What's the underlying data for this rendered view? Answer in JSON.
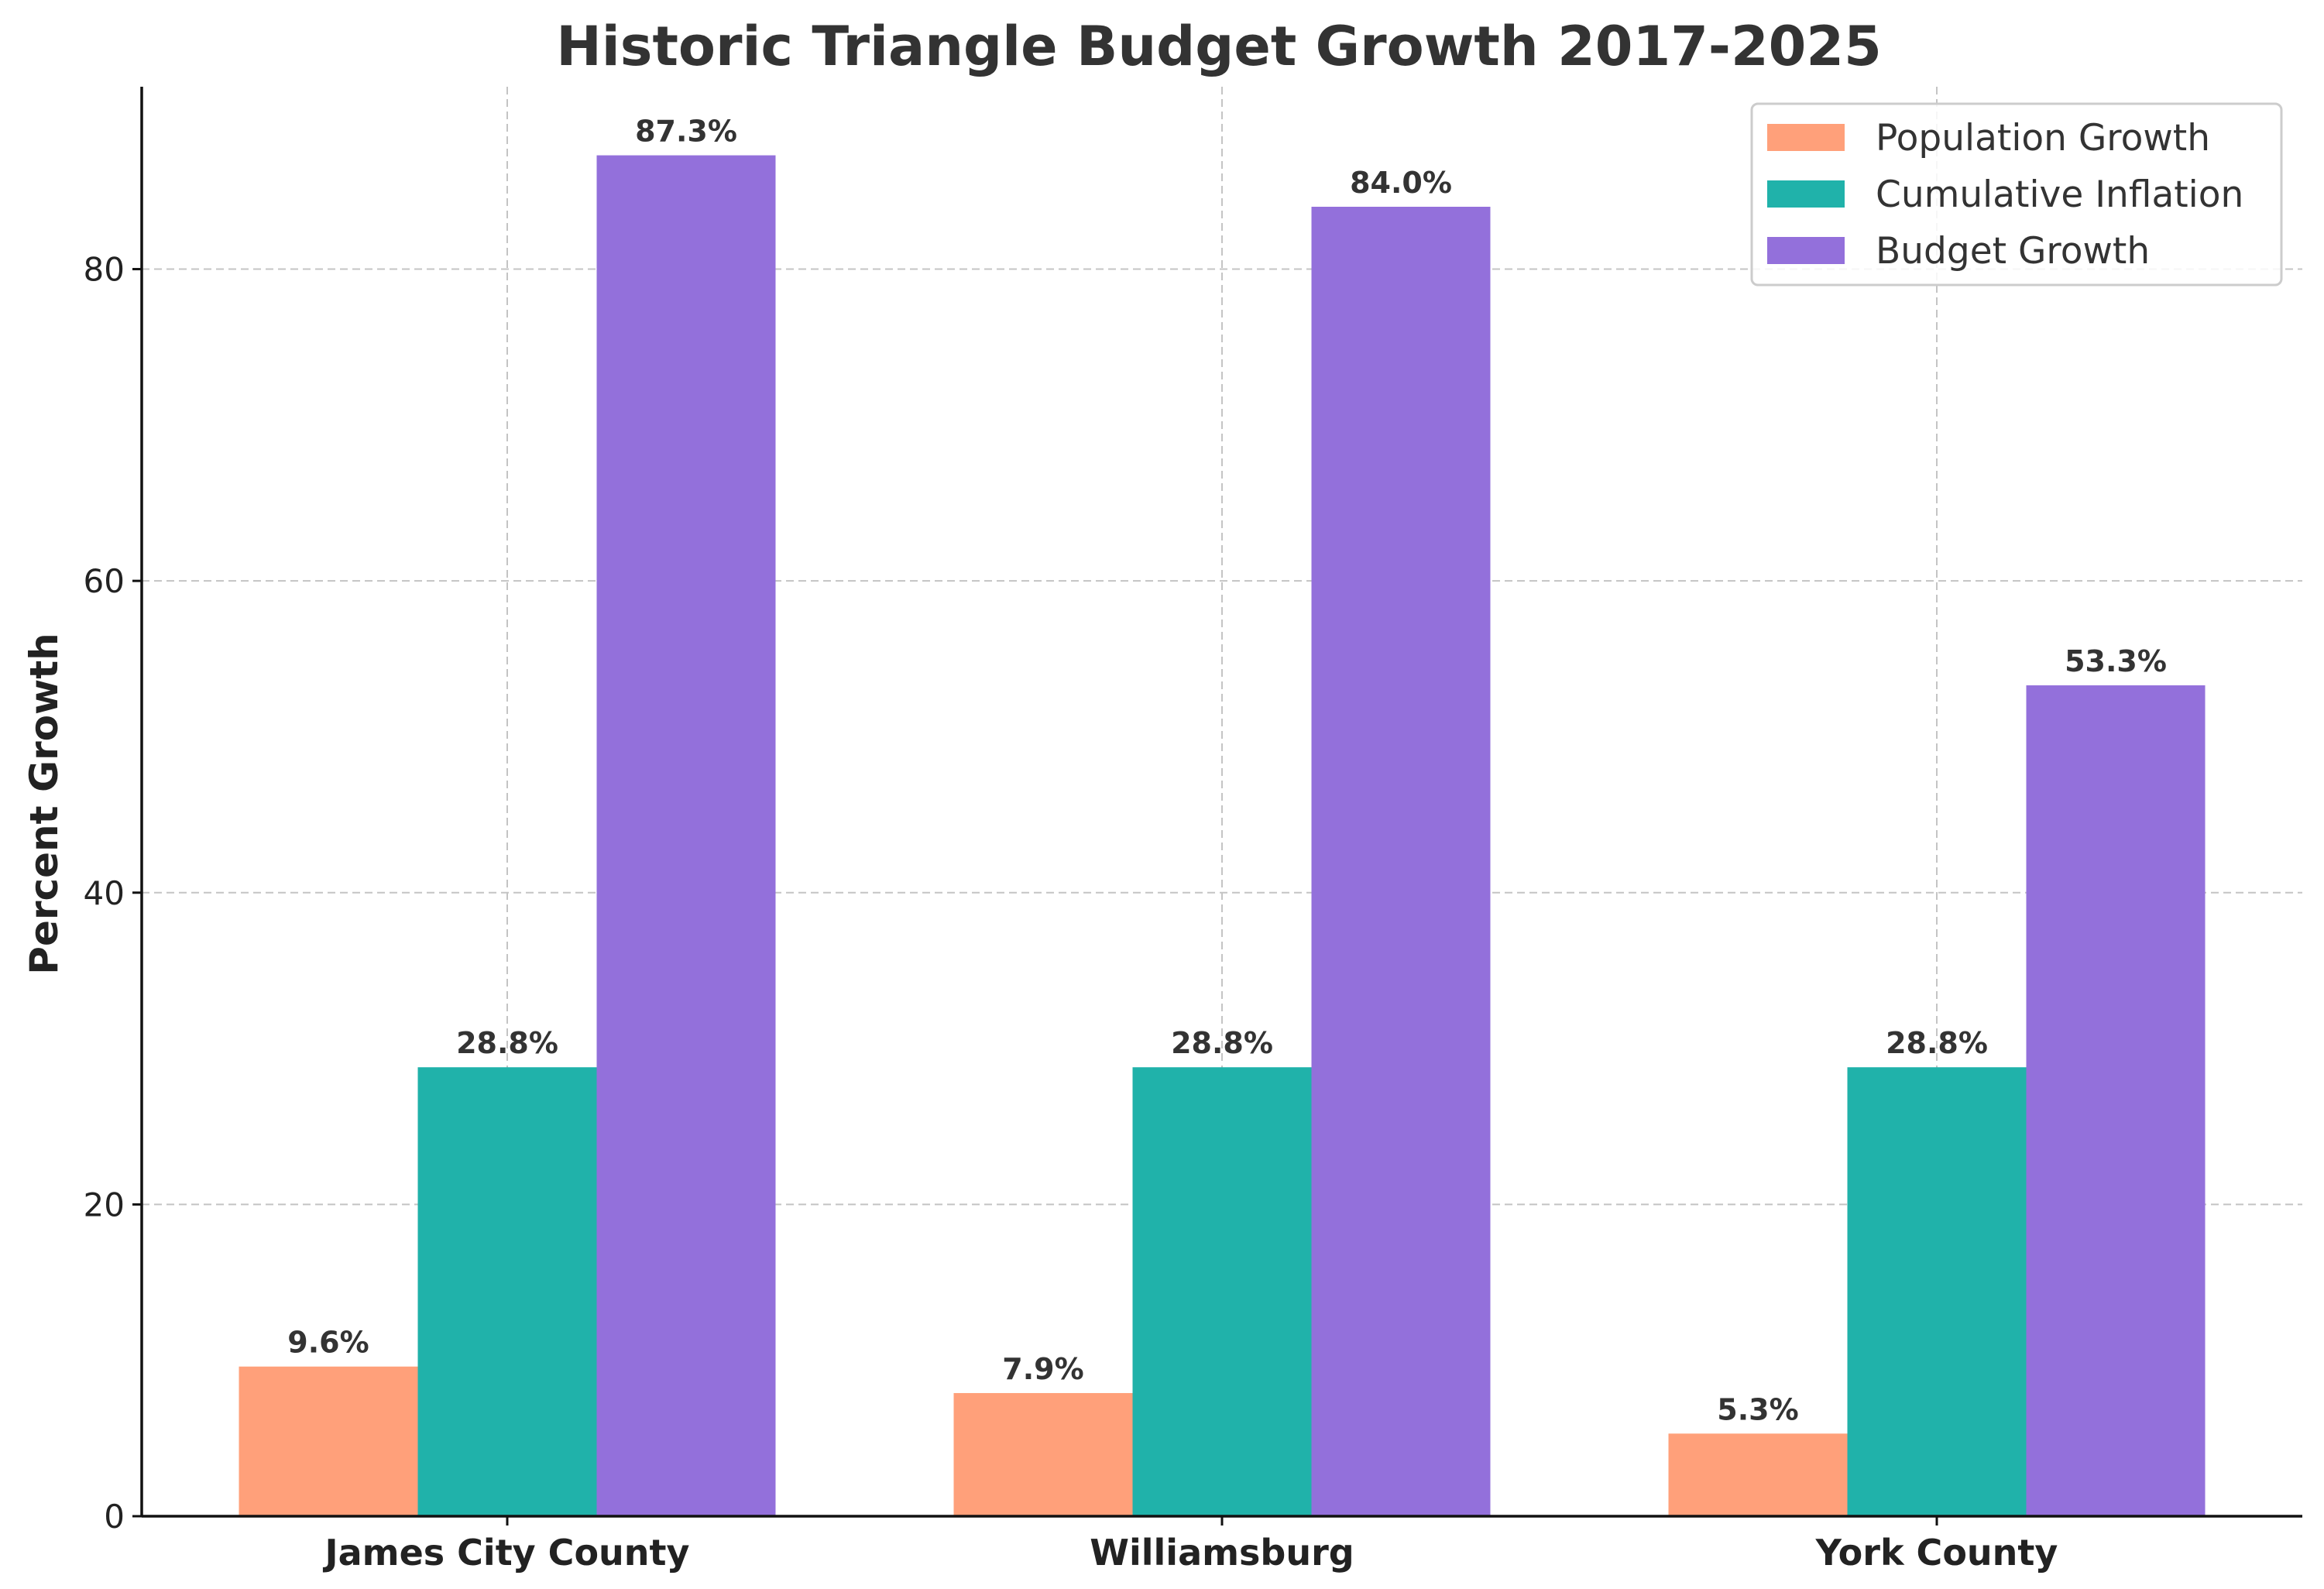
{
  "chart_data": {
    "type": "bar",
    "title": "Historic Triangle Budget Growth 2017-2025",
    "xlabel": "",
    "ylabel": "Percent Growth",
    "categories": [
      "James City County",
      "Williamsburg",
      "York County"
    ],
    "series": [
      {
        "name": "Population Growth",
        "color": "#FFA07A",
        "values": [
          9.6,
          7.9,
          5.3
        ],
        "labels": [
          "9.6%",
          "7.9%",
          "5.3%"
        ]
      },
      {
        "name": "Cumulative Inflation",
        "color": "#20B2AA",
        "values": [
          28.8,
          28.8,
          28.8
        ],
        "labels": [
          "28.8%",
          "28.8%",
          "28.8%"
        ]
      },
      {
        "name": "Budget Growth",
        "color": "#9370DB",
        "values": [
          87.3,
          84.0,
          53.3
        ],
        "labels": [
          "87.3%",
          "84.0%",
          "53.3%"
        ]
      }
    ],
    "ylim": [
      0,
      91.7
    ],
    "yticks": [
      0,
      20,
      40,
      60,
      80
    ],
    "ytick_labels": [
      "0",
      "20",
      "40",
      "60",
      "80"
    ],
    "grid": true,
    "legend_position": "top-right"
  }
}
